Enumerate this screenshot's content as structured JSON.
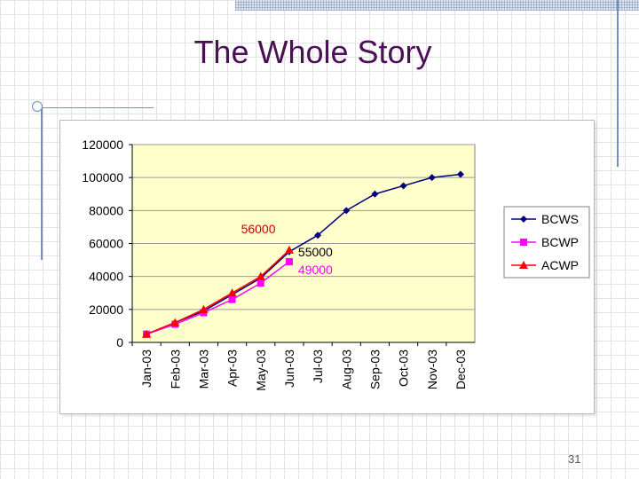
{
  "slide": {
    "title": "The Whole Story",
    "page_number": "31"
  },
  "chart_data": {
    "type": "line",
    "title": "",
    "xlabel": "",
    "ylabel": "",
    "categories": [
      "Jan-03",
      "Feb-03",
      "Mar-03",
      "Apr-03",
      "May-03",
      "Jun-03",
      "Jul-03",
      "Aug-03",
      "Sep-03",
      "Oct-03",
      "Nov-03",
      "Dec-03"
    ],
    "ylim": [
      0,
      120000
    ],
    "yticks": [
      0,
      20000,
      40000,
      60000,
      80000,
      100000,
      120000
    ],
    "ytick_labels": [
      "0",
      "20000",
      "40000",
      "60000",
      "80000",
      "100000",
      "120000"
    ],
    "grid": true,
    "legend_position": "right",
    "plot_background": "#ffffcc",
    "series": [
      {
        "name": "BCWS",
        "color": "#000080",
        "marker": "diamond",
        "values": [
          5000,
          12000,
          19000,
          29000,
          39000,
          55000,
          65000,
          80000,
          90000,
          95000,
          100000,
          102000
        ]
      },
      {
        "name": "BCWP",
        "color": "#ff00ff",
        "marker": "square",
        "values": [
          5000,
          11000,
          18000,
          26000,
          36000,
          49000,
          null,
          null,
          null,
          null,
          null,
          null
        ]
      },
      {
        "name": "ACWP",
        "color": "#ff0000",
        "marker": "triangle",
        "values": [
          5000,
          12000,
          20000,
          30000,
          40000,
          56000,
          null,
          null,
          null,
          null,
          null,
          null
        ]
      }
    ],
    "annotations": [
      {
        "text": "56000",
        "color": "#cc0000",
        "x": "Apr-03",
        "y": 69000
      },
      {
        "text": "55000",
        "color": "#000000",
        "x": "Jun-03",
        "y": 55000
      },
      {
        "text": "49000",
        "color": "#ff00ff",
        "x": "Jun-03",
        "y": 44000
      }
    ]
  }
}
